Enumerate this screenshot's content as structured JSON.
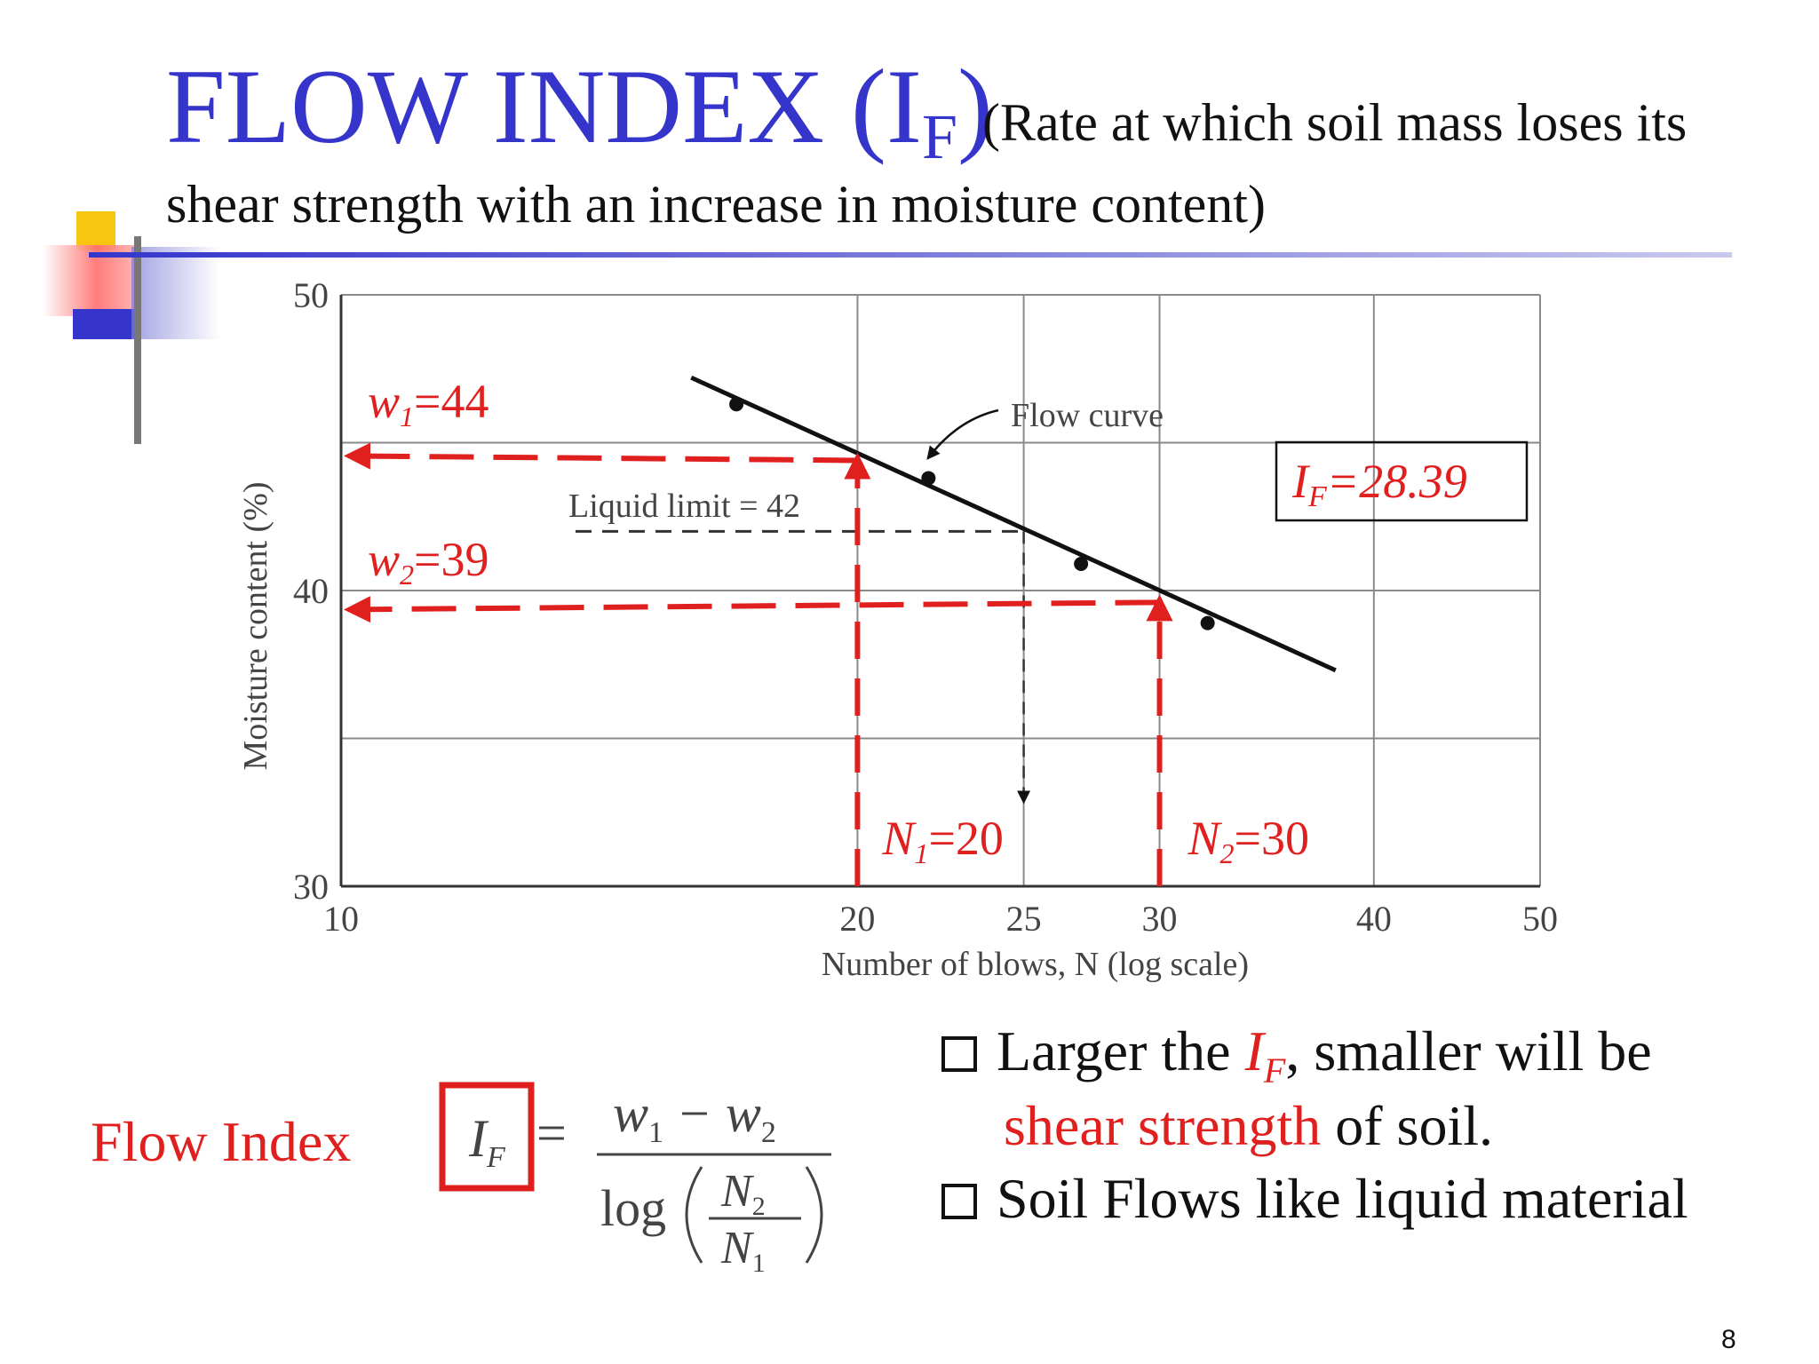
{
  "slide": {
    "title": "FLOW INDEX (I",
    "title_sub": "F",
    "title_close": ")",
    "subtitle_1": "(Rate at which soil mass loses its",
    "subtitle_2": "shear strength with an increase in moisture content)",
    "page_number": "8"
  },
  "chart_data": {
    "type": "line",
    "xlabel": "Number of blows, N (log scale)",
    "ylabel": "Moisture content (%)",
    "x_scale": "log",
    "xlim": [
      10,
      50
    ],
    "ylim": [
      30,
      50
    ],
    "x_ticks": [
      "10",
      "20",
      "25",
      "30",
      "40",
      "50"
    ],
    "y_ticks": [
      "30",
      "40",
      "50"
    ],
    "grid": true,
    "points": [
      {
        "x": 17,
        "y": 46.3
      },
      {
        "x": 22,
        "y": 43.8
      },
      {
        "x": 27,
        "y": 40.9
      },
      {
        "x": 32,
        "y": 38.9
      }
    ],
    "series": [
      {
        "name": "Flow curve",
        "x": [
          16,
          38
        ],
        "y": [
          47.2,
          37.3
        ]
      }
    ],
    "annotations": {
      "flow_curve_label": "Flow curve",
      "liquid_limit_label": "Liquid limit = 42",
      "liquid_limit": {
        "x": 25,
        "y": 42
      },
      "w1": {
        "sym": "w",
        "sub": "1",
        "val": "=44",
        "y": 44.4
      },
      "w2": {
        "sym": "w",
        "sub": "2",
        "val": "=39",
        "y": 39.6
      },
      "n1": {
        "sym": "N",
        "sub": "1",
        "val": "=20",
        "x": 20
      },
      "n2": {
        "sym": "N",
        "sub": "2",
        "val": "=30",
        "x": 30
      },
      "if_box": {
        "sym": "I",
        "sub": "F",
        "val": "=28.39"
      }
    },
    "colors": {
      "curve": "#111111",
      "grid": "#8a8a8a",
      "annotation": "#e0201e"
    }
  },
  "notes": {
    "bullet1_pre": "Larger the ",
    "bullet1_sym": "I",
    "bullet1_sub": "F",
    "bullet1_post": ", smaller will  be",
    "bullet1_red": "shear strength",
    "bullet1_end": " of soil.",
    "bullet2": "Soil Flows like liquid material"
  },
  "formula": {
    "label": "Flow Index",
    "lhs_sym": "I",
    "lhs_sub": "F",
    "eq": "=",
    "numerator_a": "w",
    "numerator_a_sub": "1",
    "minus": "−",
    "numerator_b": "w",
    "numerator_b_sub": "2",
    "log": "log",
    "ratio_top": "N",
    "ratio_top_sub": "2",
    "ratio_bottom": "N",
    "ratio_bottom_sub": "1"
  }
}
